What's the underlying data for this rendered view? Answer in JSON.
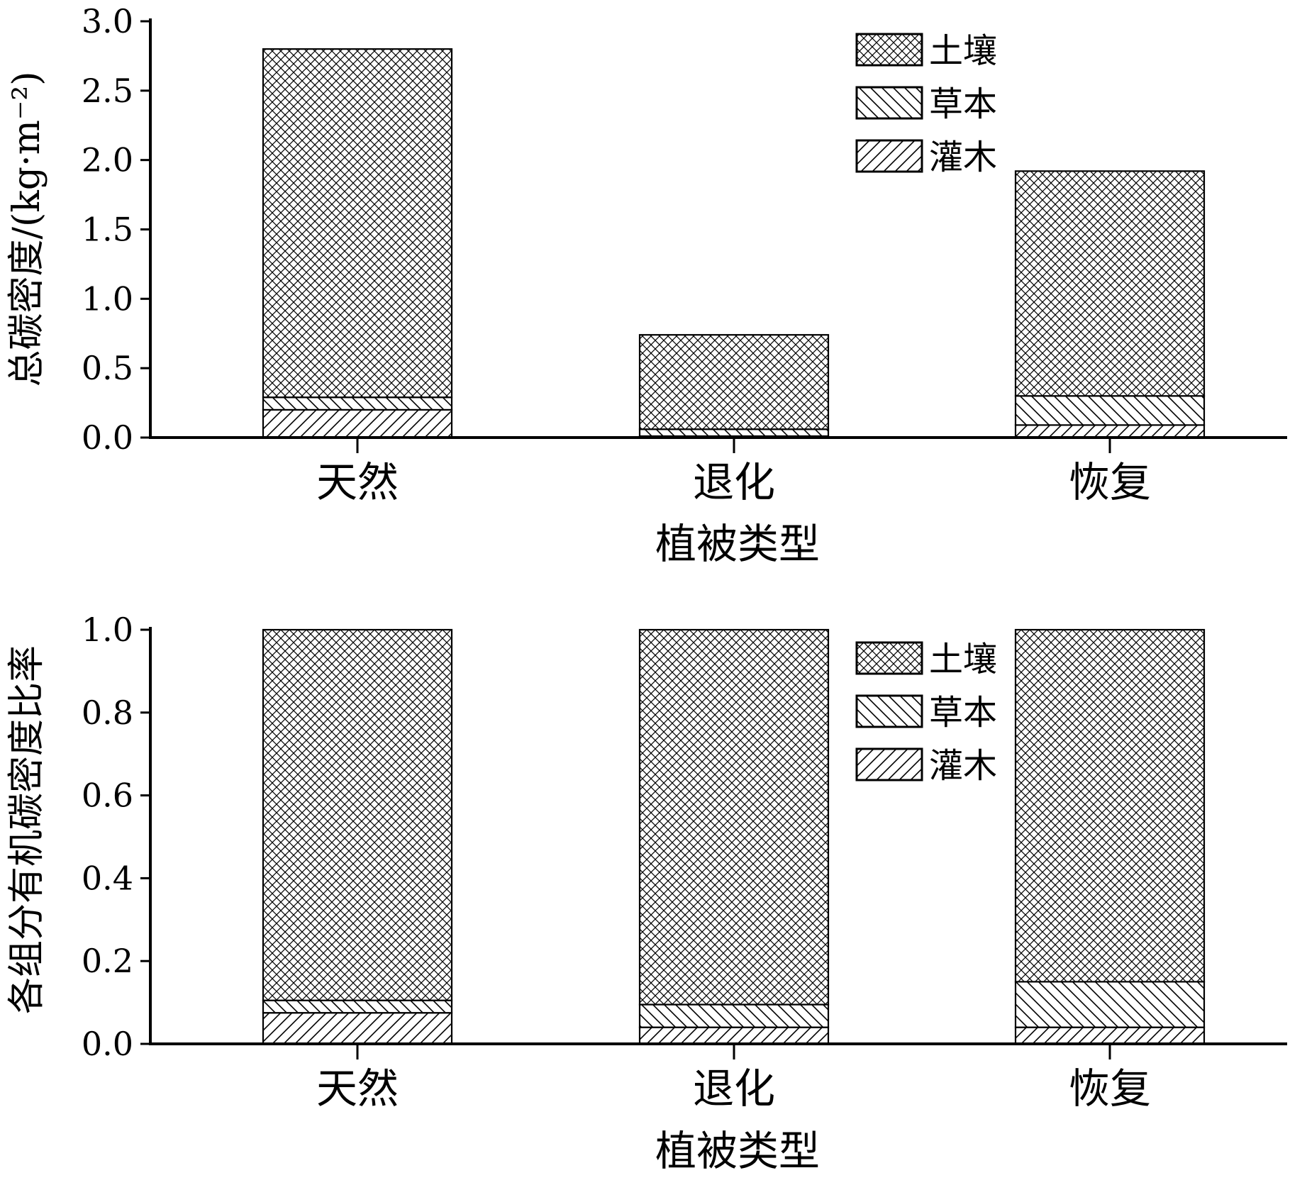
{
  "chart_data": [
    {
      "type": "bar",
      "stacked": true,
      "categories": [
        "天然",
        "退化",
        "恢复"
      ],
      "series": [
        {
          "name": "灌木",
          "values": [
            0.2,
            0.01,
            0.09
          ],
          "pattern": "diag-forward"
        },
        {
          "name": "草本",
          "values": [
            0.09,
            0.05,
            0.21
          ],
          "pattern": "diag-back"
        },
        {
          "name": "土壤",
          "values": [
            2.51,
            0.68,
            1.62
          ],
          "pattern": "crosshatch"
        }
      ],
      "xlabel": "植被类型",
      "ylabel": "总碳密度/(kg·m⁻²)",
      "ylim": [
        0,
        3.0
      ],
      "yticks": [
        "0.0",
        "0.5",
        "1.0",
        "1.5",
        "2.0",
        "2.5",
        "3.0"
      ],
      "legend_order": [
        "土壤",
        "草本",
        "灌木"
      ],
      "legend_position": "top-right",
      "grid": false
    },
    {
      "type": "bar",
      "stacked": true,
      "categories": [
        "天然",
        "退化",
        "恢复"
      ],
      "series": [
        {
          "name": "灌木",
          "values": [
            0.075,
            0.04,
            0.04
          ],
          "pattern": "diag-forward"
        },
        {
          "name": "草本",
          "values": [
            0.03,
            0.055,
            0.11
          ],
          "pattern": "diag-back"
        },
        {
          "name": "土壤",
          "values": [
            0.895,
            0.905,
            0.85
          ],
          "pattern": "crosshatch"
        }
      ],
      "xlabel": "植被类型",
      "ylabel": "各组分有机碳密度比率",
      "ylim": [
        0,
        1.0
      ],
      "yticks": [
        "0.0",
        "0.2",
        "0.4",
        "0.6",
        "0.8",
        "1.0"
      ],
      "legend_order": [
        "土壤",
        "草本",
        "灌木"
      ],
      "legend_position": "top-right",
      "grid": false
    }
  ]
}
